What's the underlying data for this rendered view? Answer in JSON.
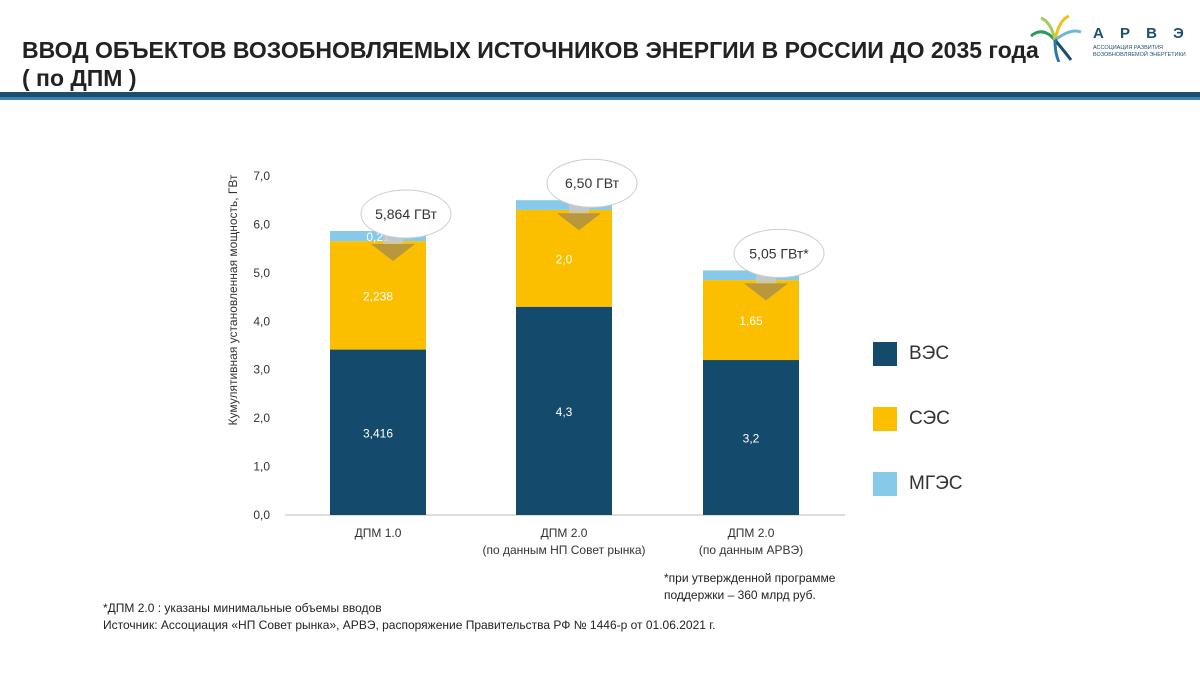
{
  "title_line1": "ВВОД ОБЪЕКТОВ ВОЗОБНОВЛЯЕМЫХ ИСТОЧНИКОВ ЭНЕРГИИ В РОССИИ ДО 2035 года",
  "title_line2": "( по ДПМ )",
  "logo": {
    "name": "А Р В Э",
    "subtitle": "Ассоциация развития возобновляемой энергетики"
  },
  "chart_data": {
    "type": "bar",
    "stacked": true,
    "ylabel": "Кумулятивная установленная мощность, ГВт",
    "ylim": [
      0,
      7
    ],
    "yticks": [
      "0,0",
      "1,0",
      "2,0",
      "3,0",
      "4,0",
      "5,0",
      "6,0",
      "7,0"
    ],
    "categories": [
      [
        "ДПМ 1.0",
        ""
      ],
      [
        "ДПМ 2.0",
        "(по данным НП Совет рынка)"
      ],
      [
        "ДПМ 2.0",
        "(по данным АРВЭ)"
      ]
    ],
    "series": [
      {
        "name": "ВЭС",
        "color": "#144a6c",
        "values": [
          3.416,
          4.3,
          3.2
        ],
        "labels": [
          "3,416",
          "4,3",
          "3,2"
        ]
      },
      {
        "name": "СЭС",
        "color": "#fbbf00",
        "values": [
          2.238,
          2.0,
          1.65
        ],
        "labels": [
          "2,238",
          "2,0",
          "1,65"
        ]
      },
      {
        "name": "МГЭС",
        "color": "#87c9e8",
        "values": [
          0.21,
          0.2,
          0.2
        ],
        "labels": [
          "0,21",
          "",
          ""
        ]
      }
    ],
    "totals": [
      "5,864 ГВт",
      "6,50 ГВт",
      "5,05 ГВт*"
    ],
    "legend_position": "right"
  },
  "notes": {
    "asterisk": "*при утвержденной программе поддержки – 360 млрд руб.",
    "footnote": "*ДПМ 2.0 : указаны минимальные объемы вводов",
    "source": "Источник: Ассоциация «НП Совет рынка»,  АРВЭ, распоряжение Правительства РФ № 1446-р  от 01.06.2021 г."
  }
}
